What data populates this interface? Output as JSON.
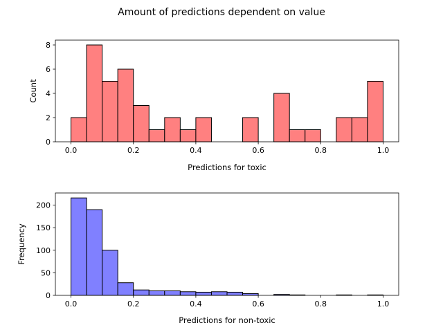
{
  "figure": {
    "title": "Amount of predictions dependent on value"
  },
  "chart_data": [
    {
      "type": "bar",
      "histogram": true,
      "xlabel": "Predictions for toxic",
      "ylabel": "Count",
      "xlim": [
        -0.05,
        1.05
      ],
      "ylim": [
        0,
        8.4
      ],
      "xticks": [
        0.0,
        0.2,
        0.4,
        0.6,
        0.8,
        1.0
      ],
      "xtick_labels": [
        "0.0",
        "0.2",
        "0.4",
        "0.6",
        "0.8",
        "1.0"
      ],
      "yticks": [
        0,
        2,
        4,
        6,
        8
      ],
      "ytick_labels": [
        "0",
        "2",
        "4",
        "6",
        "8"
      ],
      "bin_width": 0.05,
      "bin_starts": [
        0.0,
        0.05,
        0.1,
        0.15,
        0.2,
        0.25,
        0.3,
        0.35,
        0.4,
        0.45,
        0.5,
        0.55,
        0.6,
        0.65,
        0.7,
        0.75,
        0.8,
        0.85,
        0.9,
        0.95
      ],
      "values": [
        2,
        8,
        5,
        6,
        3,
        1,
        2,
        1,
        2,
        0,
        0,
        2,
        0,
        4,
        1,
        1,
        0,
        2,
        2,
        5
      ],
      "fill": "#ff8080",
      "edge": "#000000"
    },
    {
      "type": "bar",
      "histogram": true,
      "xlabel": "Predictions for non-toxic",
      "ylabel": "Frequency",
      "xlim": [
        -0.05,
        1.05
      ],
      "ylim": [
        0,
        227
      ],
      "xticks": [
        0.0,
        0.2,
        0.4,
        0.6,
        0.8,
        1.0
      ],
      "xtick_labels": [
        "0.0",
        "0.2",
        "0.4",
        "0.6",
        "0.8",
        "1.0"
      ],
      "yticks": [
        0,
        50,
        100,
        150,
        200
      ],
      "ytick_labels": [
        "0",
        "50",
        "100",
        "150",
        "200"
      ],
      "bin_width": 0.05,
      "bin_starts": [
        0.0,
        0.05,
        0.1,
        0.15,
        0.2,
        0.25,
        0.3,
        0.35,
        0.4,
        0.45,
        0.5,
        0.55,
        0.6,
        0.65,
        0.7,
        0.75,
        0.8,
        0.85,
        0.9,
        0.95
      ],
      "values": [
        216,
        190,
        100,
        28,
        12,
        10,
        10,
        8,
        7,
        8,
        7,
        4,
        0,
        2,
        1,
        0,
        0,
        1,
        0,
        1
      ],
      "fill": "#8080ff",
      "edge": "#000000"
    }
  ]
}
